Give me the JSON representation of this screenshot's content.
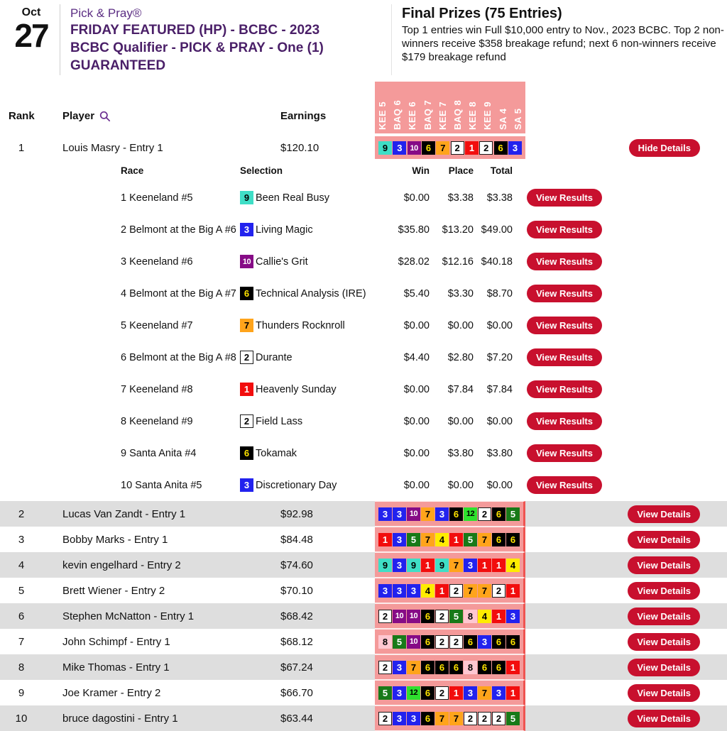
{
  "event": {
    "date_month": "Oct",
    "date_day": "27",
    "brand": "Pick & Pray®",
    "title_line1": "FRIDAY FEATURED (HP) - BCBC - 2023",
    "title_line2": "BCBC Qualifier - PICK & PRAY - One (1)",
    "title_line3": "GUARANTEED"
  },
  "prizes": {
    "title": "Final Prizes (75 Entries)",
    "description": "Top 1 entries win Full $10,000 entry to Nov., 2023 BCBC. Top 2 non-winners receive $358 breakage refund; next 6 non-winners receive $179 breakage refund"
  },
  "leaderboard": {
    "headers": {
      "rank": "Rank",
      "player": "Player",
      "earnings": "Earnings"
    },
    "race_columns": [
      "KEE 5",
      "BAQ 6",
      "KEE 6",
      "BAQ 7",
      "KEE 7",
      "BAQ 8",
      "KEE 8",
      "KEE 9",
      "SA 4",
      "SA 5"
    ],
    "rows": [
      {
        "rank": "1",
        "player": "Louis Masry - Entry 1",
        "earnings": "$120.10",
        "picks": [
          9,
          3,
          10,
          6,
          7,
          2,
          1,
          2,
          6,
          3
        ],
        "button": "Hide Details",
        "expanded": true
      },
      {
        "rank": "2",
        "player": "Lucas Van Zandt - Entry 1",
        "earnings": "$92.98",
        "picks": [
          3,
          3,
          10,
          7,
          3,
          6,
          12,
          2,
          6,
          5
        ],
        "button": "View Details"
      },
      {
        "rank": "3",
        "player": "Bobby Marks - Entry 1",
        "earnings": "$84.48",
        "picks": [
          1,
          3,
          5,
          7,
          4,
          1,
          5,
          7,
          6,
          6
        ],
        "button": "View Details"
      },
      {
        "rank": "4",
        "player": "kevin engelhard - Entry 2",
        "earnings": "$74.60",
        "picks": [
          9,
          3,
          9,
          1,
          9,
          7,
          3,
          1,
          1,
          4
        ],
        "button": "View Details"
      },
      {
        "rank": "5",
        "player": "Brett Wiener - Entry 2",
        "earnings": "$70.10",
        "picks": [
          3,
          3,
          3,
          4,
          1,
          2,
          7,
          7,
          2,
          1
        ],
        "button": "View Details"
      },
      {
        "rank": "6",
        "player": "Stephen McNatton - Entry 1",
        "earnings": "$68.42",
        "picks": [
          2,
          10,
          10,
          6,
          2,
          5,
          8,
          4,
          1,
          3
        ],
        "button": "View Details"
      },
      {
        "rank": "7",
        "player": "John Schimpf - Entry 1",
        "earnings": "$68.12",
        "picks": [
          8,
          5,
          10,
          6,
          2,
          2,
          6,
          3,
          6,
          6
        ],
        "button": "View Details"
      },
      {
        "rank": "8",
        "player": "Mike Thomas - Entry 1",
        "earnings": "$67.24",
        "picks": [
          2,
          3,
          7,
          6,
          6,
          6,
          8,
          6,
          6,
          1
        ],
        "button": "View Details"
      },
      {
        "rank": "9",
        "player": "Joe Kramer - Entry 2",
        "earnings": "$66.70",
        "picks": [
          5,
          3,
          12,
          6,
          2,
          1,
          3,
          7,
          3,
          1
        ],
        "button": "View Details"
      },
      {
        "rank": "10",
        "player": "bruce dagostini - Entry 1",
        "earnings": "$63.44",
        "picks": [
          2,
          3,
          3,
          6,
          7,
          7,
          2,
          2,
          2,
          5
        ],
        "button": "View Details"
      }
    ],
    "details": {
      "headers": {
        "race": "Race",
        "selection": "Selection",
        "win": "Win",
        "place": "Place",
        "total": "Total"
      },
      "view_results_label": "View Results",
      "rows": [
        {
          "race": "1 Keeneland #5",
          "horse_num": 9,
          "horse": "Been Real Busy",
          "win": "$0.00",
          "place": "$3.38",
          "total": "$3.38"
        },
        {
          "race": "2 Belmont at the Big A #6",
          "horse_num": 3,
          "horse": "Living Magic",
          "win": "$35.80",
          "place": "$13.20",
          "total": "$49.00"
        },
        {
          "race": "3 Keeneland #6",
          "horse_num": 10,
          "horse": "Callie's Grit",
          "win": "$28.02",
          "place": "$12.16",
          "total": "$40.18"
        },
        {
          "race": "4 Belmont at the Big A #7",
          "horse_num": 6,
          "horse": "Technical Analysis (IRE)",
          "win": "$5.40",
          "place": "$3.30",
          "total": "$8.70"
        },
        {
          "race": "5 Keeneland #7",
          "horse_num": 7,
          "horse": "Thunders Rocknroll",
          "win": "$0.00",
          "place": "$0.00",
          "total": "$0.00"
        },
        {
          "race": "6 Belmont at the Big A #8",
          "horse_num": 2,
          "horse": "Durante",
          "win": "$4.40",
          "place": "$2.80",
          "total": "$7.20"
        },
        {
          "race": "7 Keeneland #8",
          "horse_num": 1,
          "horse": "Heavenly Sunday",
          "win": "$0.00",
          "place": "$7.84",
          "total": "$7.84"
        },
        {
          "race": "8 Keeneland #9",
          "horse_num": 2,
          "horse": "Field Lass",
          "win": "$0.00",
          "place": "$0.00",
          "total": "$0.00"
        },
        {
          "race": "9 Santa Anita #4",
          "horse_num": 6,
          "horse": "Tokamak",
          "win": "$0.00",
          "place": "$3.80",
          "total": "$3.80"
        },
        {
          "race": "10 Santa Anita #5",
          "horse_num": 3,
          "horse": "Discretionary Day",
          "win": "$0.00",
          "place": "$0.00",
          "total": "$0.00"
        }
      ]
    }
  },
  "colors": {
    "accent_purple": "#4a1f68",
    "button_crimson": "#c8102e",
    "band_pink": "#f49a9a",
    "row_alt_gray": "#dedede",
    "saddle_cloth": {
      "1": {
        "bg": "#f20d0d",
        "fg": "#ffffff"
      },
      "2": {
        "bg": "#ffffff",
        "fg": "#000000",
        "border": "#1a1a1a"
      },
      "3": {
        "bg": "#2222ee",
        "fg": "#ffffff"
      },
      "4": {
        "bg": "#ffec00",
        "fg": "#000000"
      },
      "5": {
        "bg": "#187a18",
        "fg": "#ffffff"
      },
      "6": {
        "bg": "#000000",
        "fg": "#ffe400"
      },
      "7": {
        "bg": "#ffa41b",
        "fg": "#000000"
      },
      "8": {
        "bg": "#ffc7d1",
        "fg": "#000000"
      },
      "9": {
        "bg": "#3fdec6",
        "fg": "#000000"
      },
      "10": {
        "bg": "#860b86",
        "fg": "#ffffff"
      },
      "12": {
        "bg": "#2ee02e",
        "fg": "#000000"
      }
    }
  }
}
